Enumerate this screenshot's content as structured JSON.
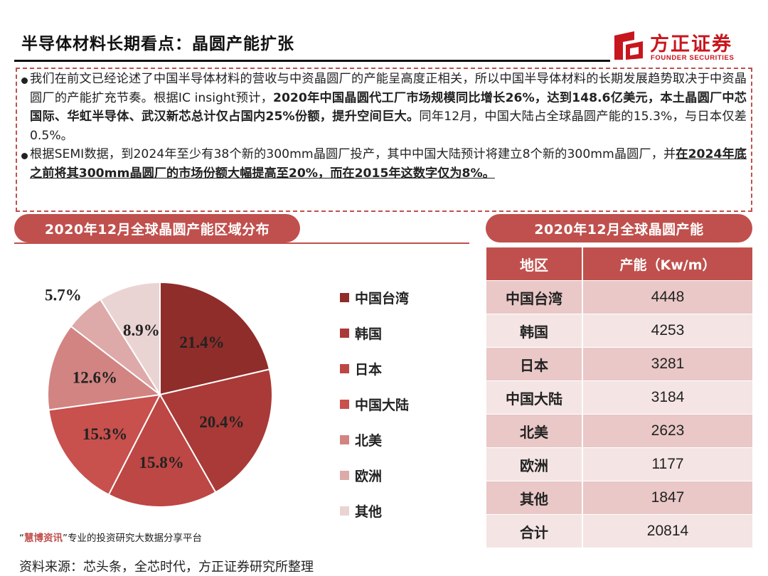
{
  "header": {
    "title": "半导体材料长期看点：晶圆产能扩张",
    "logo_name": "方正证券",
    "logo_en": "FOUNDER SECURITIES"
  },
  "bullets": [
    {
      "parts": [
        {
          "t": "我们在前文已经论述了中国半导体材料的营收与中资晶圆厂的产能呈高度正相关，所以中国半导体材料的长期发展趋势取决于中资晶圆厂的产能扩充节奏。根据IC insight预计，"
        },
        {
          "t": "2020年中国晶圆代工厂市场规模同比增长26%，达到148.6亿美元，本土晶圆厂中芯国际、华虹半导体、武汉新芯总计仅占国内25%份额，提升空间巨大。",
          "b": true
        },
        {
          "t": "同年12月，中国大陆占全球晶圆产能的15.3%，与日本仅差0.5%。"
        }
      ]
    },
    {
      "parts": [
        {
          "t": "根据SEMI数据，到2024年至少有38个新的300mm晶圆厂投产，其中中国大陆预计将建立8个新的300mm晶圆厂，并"
        },
        {
          "t": "在2024年底之前将其300mm晶圆厂的市场份额大幅提高至20%，而在2015年这数字仅为8%。",
          "b": true,
          "u": true
        }
      ]
    }
  ],
  "left_panel": {
    "title": "2020年12月全球晶圆产能区域分布"
  },
  "right_panel": {
    "title": "2020年12月全球晶圆产能"
  },
  "chart_data": [
    {
      "type": "pie",
      "title": "2020年12月全球晶圆产能区域分布",
      "categories": [
        "中国台湾",
        "韩国",
        "日本",
        "中国大陆",
        "北美",
        "欧洲",
        "其他"
      ],
      "values": [
        21.4,
        20.4,
        15.8,
        15.3,
        12.6,
        5.7,
        8.9
      ],
      "labels": [
        "21.4%",
        "20.4%",
        "15.8%",
        "15.3%",
        "12.6%",
        "5.7%",
        "8.9%"
      ],
      "colors": [
        "#8f2d2a",
        "#aa3a37",
        "#bd4744",
        "#c8504d",
        "#d28482",
        "#ddaaa9",
        "#ead4d3"
      ],
      "label_colors": [
        "#222222",
        "#222222",
        "#222222",
        "#222222",
        "#222222",
        "#222222",
        "#222222"
      ],
      "legend_position": "right"
    },
    {
      "type": "table",
      "title": "2020年12月全球晶圆产能",
      "columns": [
        "地区",
        "产能（Kw/m）"
      ],
      "rows": [
        [
          "中国台湾",
          "4448"
        ],
        [
          "韩国",
          "4253"
        ],
        [
          "日本",
          "3281"
        ],
        [
          "中国大陆",
          "3184"
        ],
        [
          "北美",
          "2623"
        ],
        [
          "欧洲",
          "1177"
        ],
        [
          "其他",
          "1847"
        ],
        [
          "合计",
          "20814"
        ]
      ]
    }
  ],
  "watermark": {
    "quote_open": "“",
    "highlight": "慧博资讯",
    "quote_close": "”",
    "rest": "专业的投资研究大数据分享平台"
  },
  "source": "资料来源：芯头条，全芯时代，方正证券研究所整理",
  "colors": {
    "accent": "#c0504d",
    "brand": "#c8161d"
  }
}
